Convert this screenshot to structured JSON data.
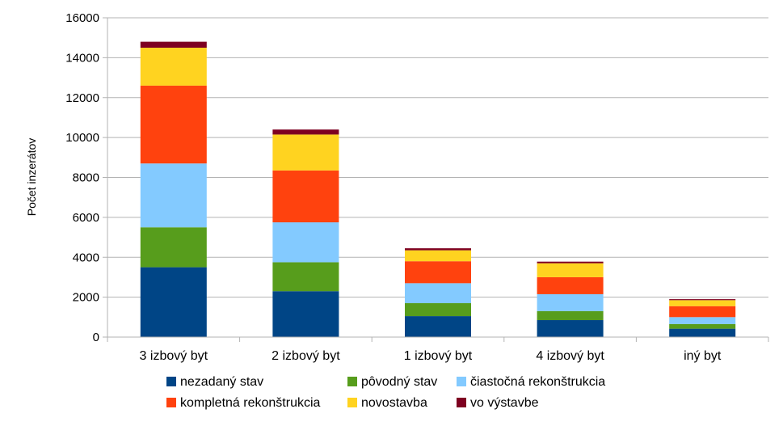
{
  "chart_data": {
    "type": "bar",
    "stacked": true,
    "title": "",
    "xlabel": "",
    "ylabel": "Počet inzerátov",
    "ylim": [
      0,
      16000
    ],
    "yticks": [
      0,
      2000,
      4000,
      6000,
      8000,
      10000,
      12000,
      14000,
      16000
    ],
    "grid": true,
    "legend_position": "bottom",
    "categories": [
      "3 izbový byt",
      "2 izbový byt",
      "1 izbový byt",
      "4 izbový byt",
      "iný byt"
    ],
    "series": [
      {
        "name": "nezadaný stav",
        "color": "#004586",
        "values": [
          3500,
          2300,
          1050,
          850,
          420
        ]
      },
      {
        "name": "pôvodný stav",
        "color": "#579D1C",
        "values": [
          2000,
          1450,
          650,
          450,
          230
        ]
      },
      {
        "name": "čiastočná rekonštrukcia",
        "color": "#83CAFF",
        "values": [
          3200,
          2000,
          1000,
          850,
          350
        ]
      },
      {
        "name": "kompletná rekonštrukcia",
        "color": "#FF420E",
        "values": [
          3900,
          2600,
          1100,
          850,
          550
        ]
      },
      {
        "name": "novostavba",
        "color": "#FFD320",
        "values": [
          1900,
          1800,
          550,
          700,
          300
        ]
      },
      {
        "name": "vo výstavbe",
        "color": "#7E0021",
        "values": [
          300,
          250,
          100,
          80,
          50
        ]
      }
    ]
  }
}
